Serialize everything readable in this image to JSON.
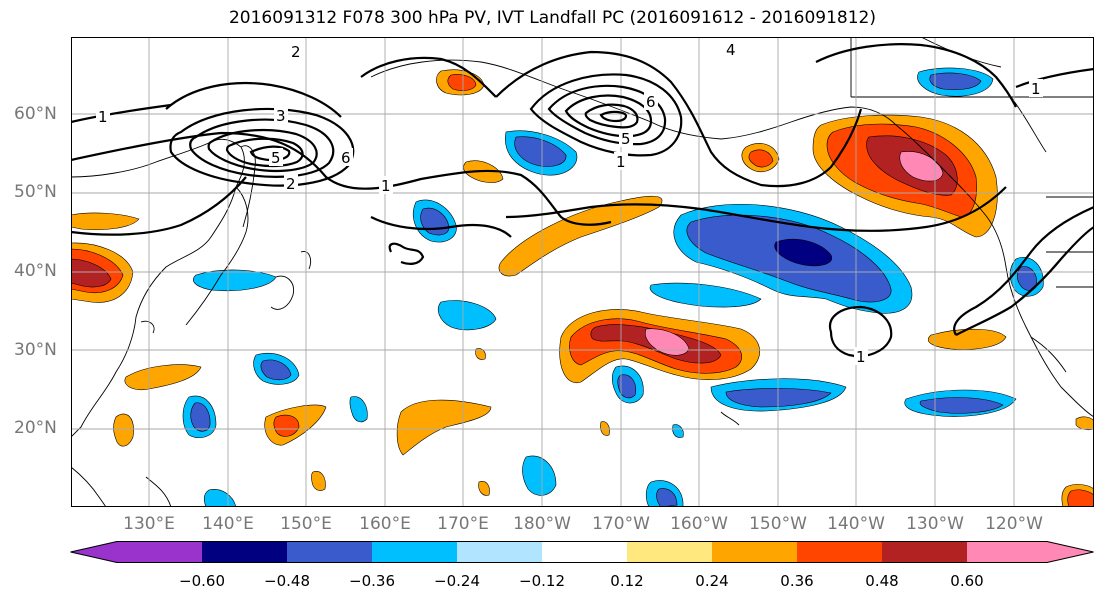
{
  "title": "2016091312 F078 300 hPa PV, IVT Landfall PC (2016091612 - 2016091812)",
  "map": {
    "lat_labels": [
      "60°N",
      "50°N",
      "40°N",
      "30°N",
      "20°N"
    ],
    "lon_labels": [
      "130°E",
      "140°E",
      "150°E",
      "160°E",
      "170°E",
      "180°W",
      "170°W",
      "160°W",
      "150°W",
      "140°W",
      "130°W",
      "120°W"
    ],
    "contour_labels": [
      "1",
      "2",
      "3",
      "5",
      "6",
      "4",
      "1",
      "5",
      "6",
      "2",
      "1",
      "1",
      "1"
    ]
  },
  "colorbar": {
    "tick_labels": [
      "−0.60",
      "−0.48",
      "−0.36",
      "−0.24",
      "−0.12",
      "0.12",
      "0.24",
      "0.36",
      "0.48",
      "0.60"
    ],
    "colors": [
      "#9a33cc",
      "#000080",
      "#3a5bcc",
      "#00bfff",
      "#b0e4ff",
      "#ffffff",
      "#ffe97f",
      "#ffa500",
      "#ff4500",
      "#b22222",
      "#ff88b4"
    ]
  }
}
